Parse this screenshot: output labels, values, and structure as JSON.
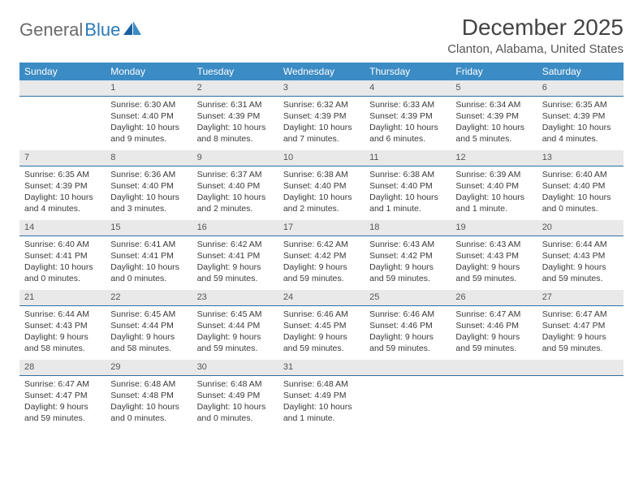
{
  "logo": {
    "part1": "General",
    "part2": "Blue"
  },
  "title": "December 2025",
  "location": "Clanton, Alabama, United States",
  "colors": {
    "header_bg": "#3b8bc4",
    "daynum_bg": "#e9e9e9",
    "daynum_border": "#2d6fa3",
    "text": "#3a3a3a",
    "logo_gray": "#6a6a6a",
    "logo_blue": "#2a7ab8"
  },
  "days_of_week": [
    "Sunday",
    "Monday",
    "Tuesday",
    "Wednesday",
    "Thursday",
    "Friday",
    "Saturday"
  ],
  "weeks": [
    [
      {
        "n": "",
        "empty": true
      },
      {
        "n": "1",
        "sunrise": "Sunrise: 6:30 AM",
        "sunset": "Sunset: 4:40 PM",
        "daylight": "Daylight: 10 hours and 9 minutes."
      },
      {
        "n": "2",
        "sunrise": "Sunrise: 6:31 AM",
        "sunset": "Sunset: 4:39 PM",
        "daylight": "Daylight: 10 hours and 8 minutes."
      },
      {
        "n": "3",
        "sunrise": "Sunrise: 6:32 AM",
        "sunset": "Sunset: 4:39 PM",
        "daylight": "Daylight: 10 hours and 7 minutes."
      },
      {
        "n": "4",
        "sunrise": "Sunrise: 6:33 AM",
        "sunset": "Sunset: 4:39 PM",
        "daylight": "Daylight: 10 hours and 6 minutes."
      },
      {
        "n": "5",
        "sunrise": "Sunrise: 6:34 AM",
        "sunset": "Sunset: 4:39 PM",
        "daylight": "Daylight: 10 hours and 5 minutes."
      },
      {
        "n": "6",
        "sunrise": "Sunrise: 6:35 AM",
        "sunset": "Sunset: 4:39 PM",
        "daylight": "Daylight: 10 hours and 4 minutes."
      }
    ],
    [
      {
        "n": "7",
        "sunrise": "Sunrise: 6:35 AM",
        "sunset": "Sunset: 4:39 PM",
        "daylight": "Daylight: 10 hours and 4 minutes."
      },
      {
        "n": "8",
        "sunrise": "Sunrise: 6:36 AM",
        "sunset": "Sunset: 4:40 PM",
        "daylight": "Daylight: 10 hours and 3 minutes."
      },
      {
        "n": "9",
        "sunrise": "Sunrise: 6:37 AM",
        "sunset": "Sunset: 4:40 PM",
        "daylight": "Daylight: 10 hours and 2 minutes."
      },
      {
        "n": "10",
        "sunrise": "Sunrise: 6:38 AM",
        "sunset": "Sunset: 4:40 PM",
        "daylight": "Daylight: 10 hours and 2 minutes."
      },
      {
        "n": "11",
        "sunrise": "Sunrise: 6:38 AM",
        "sunset": "Sunset: 4:40 PM",
        "daylight": "Daylight: 10 hours and 1 minute."
      },
      {
        "n": "12",
        "sunrise": "Sunrise: 6:39 AM",
        "sunset": "Sunset: 4:40 PM",
        "daylight": "Daylight: 10 hours and 1 minute."
      },
      {
        "n": "13",
        "sunrise": "Sunrise: 6:40 AM",
        "sunset": "Sunset: 4:40 PM",
        "daylight": "Daylight: 10 hours and 0 minutes."
      }
    ],
    [
      {
        "n": "14",
        "sunrise": "Sunrise: 6:40 AM",
        "sunset": "Sunset: 4:41 PM",
        "daylight": "Daylight: 10 hours and 0 minutes."
      },
      {
        "n": "15",
        "sunrise": "Sunrise: 6:41 AM",
        "sunset": "Sunset: 4:41 PM",
        "daylight": "Daylight: 10 hours and 0 minutes."
      },
      {
        "n": "16",
        "sunrise": "Sunrise: 6:42 AM",
        "sunset": "Sunset: 4:41 PM",
        "daylight": "Daylight: 9 hours and 59 minutes."
      },
      {
        "n": "17",
        "sunrise": "Sunrise: 6:42 AM",
        "sunset": "Sunset: 4:42 PM",
        "daylight": "Daylight: 9 hours and 59 minutes."
      },
      {
        "n": "18",
        "sunrise": "Sunrise: 6:43 AM",
        "sunset": "Sunset: 4:42 PM",
        "daylight": "Daylight: 9 hours and 59 minutes."
      },
      {
        "n": "19",
        "sunrise": "Sunrise: 6:43 AM",
        "sunset": "Sunset: 4:43 PM",
        "daylight": "Daylight: 9 hours and 59 minutes."
      },
      {
        "n": "20",
        "sunrise": "Sunrise: 6:44 AM",
        "sunset": "Sunset: 4:43 PM",
        "daylight": "Daylight: 9 hours and 59 minutes."
      }
    ],
    [
      {
        "n": "21",
        "sunrise": "Sunrise: 6:44 AM",
        "sunset": "Sunset: 4:43 PM",
        "daylight": "Daylight: 9 hours and 58 minutes."
      },
      {
        "n": "22",
        "sunrise": "Sunrise: 6:45 AM",
        "sunset": "Sunset: 4:44 PM",
        "daylight": "Daylight: 9 hours and 58 minutes."
      },
      {
        "n": "23",
        "sunrise": "Sunrise: 6:45 AM",
        "sunset": "Sunset: 4:44 PM",
        "daylight": "Daylight: 9 hours and 59 minutes."
      },
      {
        "n": "24",
        "sunrise": "Sunrise: 6:46 AM",
        "sunset": "Sunset: 4:45 PM",
        "daylight": "Daylight: 9 hours and 59 minutes."
      },
      {
        "n": "25",
        "sunrise": "Sunrise: 6:46 AM",
        "sunset": "Sunset: 4:46 PM",
        "daylight": "Daylight: 9 hours and 59 minutes."
      },
      {
        "n": "26",
        "sunrise": "Sunrise: 6:47 AM",
        "sunset": "Sunset: 4:46 PM",
        "daylight": "Daylight: 9 hours and 59 minutes."
      },
      {
        "n": "27",
        "sunrise": "Sunrise: 6:47 AM",
        "sunset": "Sunset: 4:47 PM",
        "daylight": "Daylight: 9 hours and 59 minutes."
      }
    ],
    [
      {
        "n": "28",
        "sunrise": "Sunrise: 6:47 AM",
        "sunset": "Sunset: 4:47 PM",
        "daylight": "Daylight: 9 hours and 59 minutes."
      },
      {
        "n": "29",
        "sunrise": "Sunrise: 6:48 AM",
        "sunset": "Sunset: 4:48 PM",
        "daylight": "Daylight: 10 hours and 0 minutes."
      },
      {
        "n": "30",
        "sunrise": "Sunrise: 6:48 AM",
        "sunset": "Sunset: 4:49 PM",
        "daylight": "Daylight: 10 hours and 0 minutes."
      },
      {
        "n": "31",
        "sunrise": "Sunrise: 6:48 AM",
        "sunset": "Sunset: 4:49 PM",
        "daylight": "Daylight: 10 hours and 1 minute."
      },
      {
        "n": "",
        "empty": true
      },
      {
        "n": "",
        "empty": true
      },
      {
        "n": "",
        "empty": true
      }
    ]
  ]
}
